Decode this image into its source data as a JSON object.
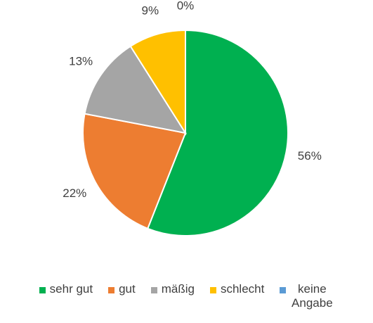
{
  "chart_data": {
    "type": "pie",
    "categories": [
      "sehr gut",
      "gut",
      "mäßig",
      "schlecht",
      "keine Angabe"
    ],
    "values": [
      56,
      22,
      13,
      9,
      0
    ],
    "value_labels": [
      "56%",
      "22%",
      "13%",
      "9%",
      "0%"
    ],
    "colors": [
      "#00b050",
      "#ed7d31",
      "#a5a5a5",
      "#ffc000",
      "#5b9bd5"
    ],
    "legend": "bottom"
  }
}
